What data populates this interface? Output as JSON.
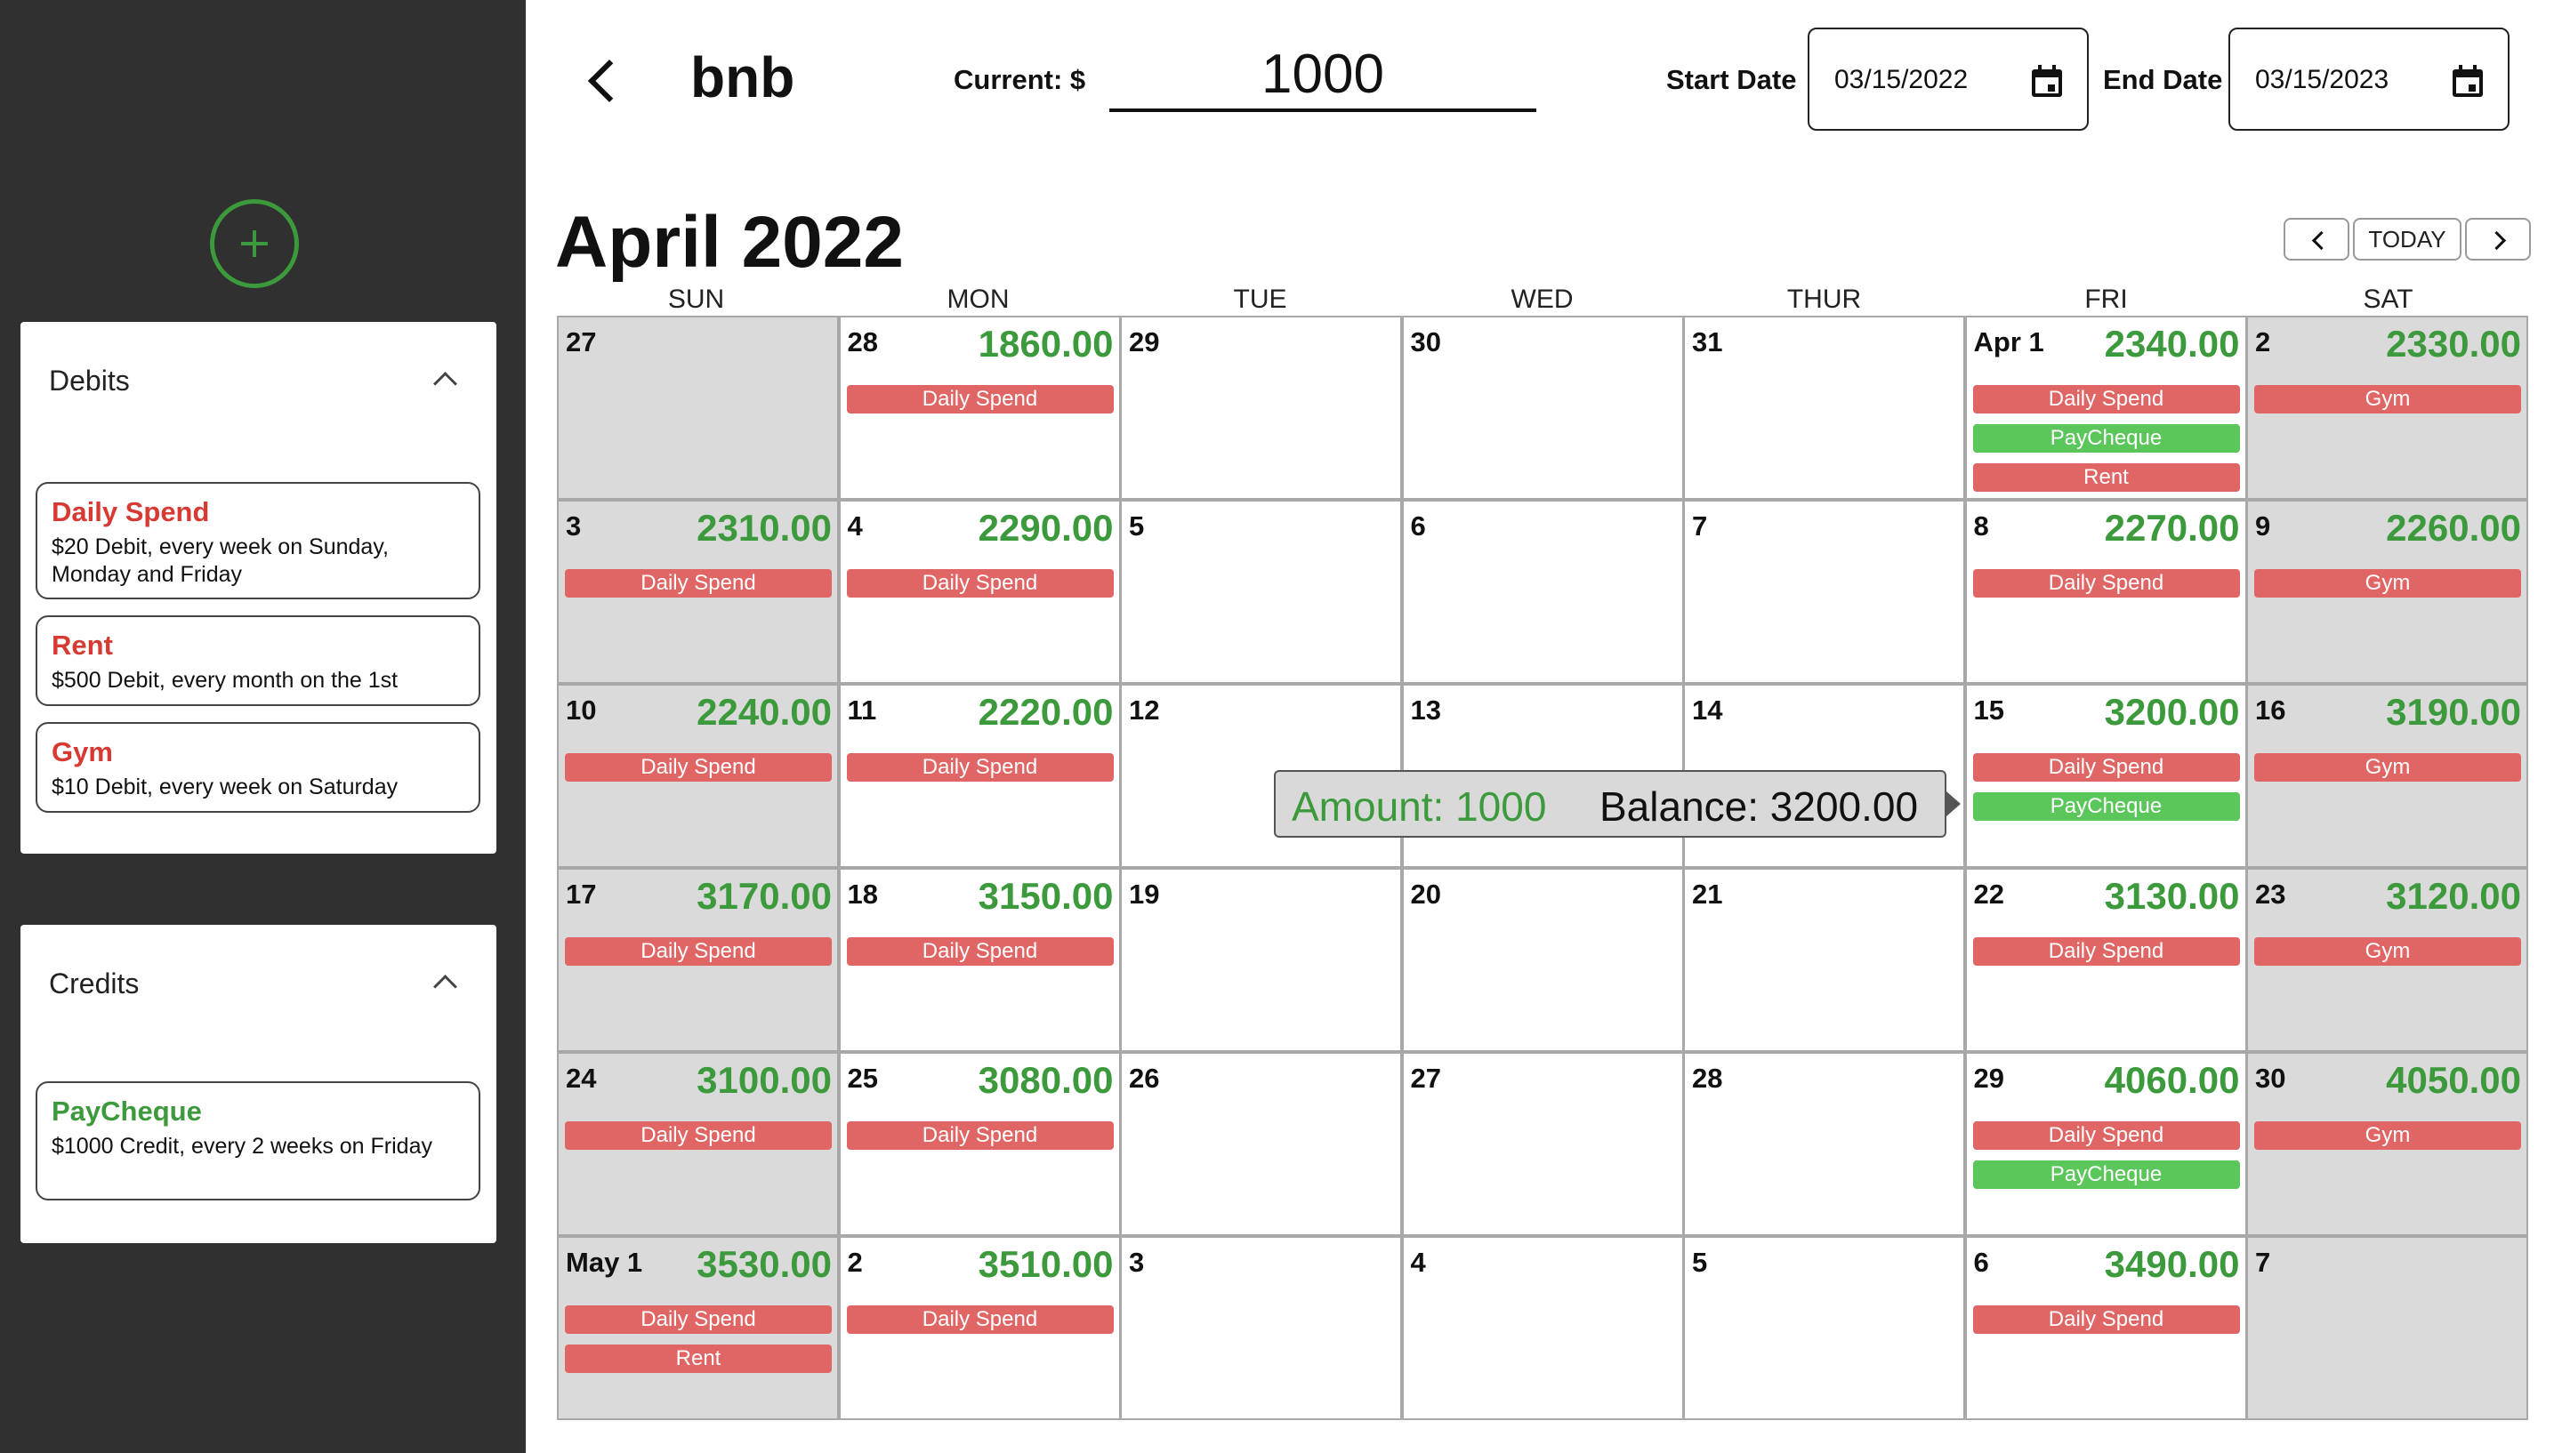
{
  "sidebar": {
    "debits": {
      "title": "Debits",
      "items": [
        {
          "name": "Daily Spend",
          "desc": "$20 Debit, every week on Sunday, Monday and Friday"
        },
        {
          "name": "Rent",
          "desc": "$500 Debit, every month on the 1st"
        },
        {
          "name": "Gym",
          "desc": "$10 Debit, every week on Saturday"
        }
      ]
    },
    "credits": {
      "title": "Credits",
      "items": [
        {
          "name": "PayCheque",
          "desc": "$1000 Credit, every 2 weeks on Friday"
        }
      ]
    }
  },
  "header": {
    "title": "bnb",
    "current_label": "Current: $",
    "current_value": "1000",
    "start_label": "Start Date",
    "start_value": "03/15/2022",
    "end_label": "End Date",
    "end_value": "03/15/2023"
  },
  "calendar": {
    "month_title": "April 2022",
    "today_label": "TODAY",
    "weekdays": [
      "SUN",
      "MON",
      "TUE",
      "WED",
      "THUR",
      "FRI",
      "SAT"
    ],
    "weeks": [
      [
        {
          "day": "27",
          "weekend": true,
          "balance": "",
          "events": []
        },
        {
          "day": "28",
          "balance": "1860.00",
          "events": [
            {
              "label": "Daily Spend",
              "kind": "debit"
            }
          ]
        },
        {
          "day": "29",
          "balance": "",
          "events": []
        },
        {
          "day": "30",
          "balance": "",
          "events": []
        },
        {
          "day": "31",
          "balance": "",
          "events": []
        },
        {
          "day": "Apr 1",
          "balance": "2340.00",
          "events": [
            {
              "label": "Daily Spend",
              "kind": "debit"
            },
            {
              "label": "PayCheque",
              "kind": "credit"
            },
            {
              "label": "Rent",
              "kind": "debit"
            }
          ]
        },
        {
          "day": "2",
          "weekend": true,
          "balance": "2330.00",
          "events": [
            {
              "label": "Gym",
              "kind": "debit"
            }
          ]
        }
      ],
      [
        {
          "day": "3",
          "weekend": true,
          "balance": "2310.00",
          "events": [
            {
              "label": "Daily Spend",
              "kind": "debit"
            }
          ]
        },
        {
          "day": "4",
          "balance": "2290.00",
          "events": [
            {
              "label": "Daily Spend",
              "kind": "debit"
            }
          ]
        },
        {
          "day": "5",
          "balance": "",
          "events": []
        },
        {
          "day": "6",
          "balance": "",
          "events": []
        },
        {
          "day": "7",
          "balance": "",
          "events": []
        },
        {
          "day": "8",
          "balance": "2270.00",
          "events": [
            {
              "label": "Daily Spend",
              "kind": "debit"
            }
          ]
        },
        {
          "day": "9",
          "weekend": true,
          "balance": "2260.00",
          "events": [
            {
              "label": "Gym",
              "kind": "debit"
            }
          ]
        }
      ],
      [
        {
          "day": "10",
          "weekend": true,
          "balance": "2240.00",
          "events": [
            {
              "label": "Daily Spend",
              "kind": "debit"
            }
          ]
        },
        {
          "day": "11",
          "balance": "2220.00",
          "events": [
            {
              "label": "Daily Spend",
              "kind": "debit"
            }
          ]
        },
        {
          "day": "12",
          "balance": "",
          "events": []
        },
        {
          "day": "13",
          "balance": "",
          "events": []
        },
        {
          "day": "14",
          "balance": "",
          "events": []
        },
        {
          "day": "15",
          "balance": "3200.00",
          "events": [
            {
              "label": "Daily Spend",
              "kind": "debit"
            },
            {
              "label": "PayCheque",
              "kind": "credit"
            }
          ]
        },
        {
          "day": "16",
          "weekend": true,
          "balance": "3190.00",
          "events": [
            {
              "label": "Gym",
              "kind": "debit"
            }
          ]
        }
      ],
      [
        {
          "day": "17",
          "weekend": true,
          "balance": "3170.00",
          "events": [
            {
              "label": "Daily Spend",
              "kind": "debit"
            }
          ]
        },
        {
          "day": "18",
          "balance": "3150.00",
          "events": [
            {
              "label": "Daily Spend",
              "kind": "debit"
            }
          ]
        },
        {
          "day": "19",
          "balance": "",
          "events": []
        },
        {
          "day": "20",
          "balance": "",
          "events": []
        },
        {
          "day": "21",
          "balance": "",
          "events": []
        },
        {
          "day": "22",
          "balance": "3130.00",
          "events": [
            {
              "label": "Daily Spend",
              "kind": "debit"
            }
          ]
        },
        {
          "day": "23",
          "weekend": true,
          "balance": "3120.00",
          "events": [
            {
              "label": "Gym",
              "kind": "debit"
            }
          ]
        }
      ],
      [
        {
          "day": "24",
          "weekend": true,
          "balance": "3100.00",
          "events": [
            {
              "label": "Daily Spend",
              "kind": "debit"
            }
          ]
        },
        {
          "day": "25",
          "balance": "3080.00",
          "events": [
            {
              "label": "Daily Spend",
              "kind": "debit"
            }
          ]
        },
        {
          "day": "26",
          "balance": "",
          "events": []
        },
        {
          "day": "27",
          "balance": "",
          "events": []
        },
        {
          "day": "28",
          "balance": "",
          "events": []
        },
        {
          "day": "29",
          "balance": "4060.00",
          "events": [
            {
              "label": "Daily Spend",
              "kind": "debit"
            },
            {
              "label": "PayCheque",
              "kind": "credit"
            }
          ]
        },
        {
          "day": "30",
          "weekend": true,
          "balance": "4050.00",
          "events": [
            {
              "label": "Gym",
              "kind": "debit"
            }
          ]
        }
      ],
      [
        {
          "day": "May 1",
          "weekend": true,
          "balance": "3530.00",
          "events": [
            {
              "label": "Daily Spend",
              "kind": "debit"
            },
            {
              "label": "Rent",
              "kind": "debit"
            }
          ]
        },
        {
          "day": "2",
          "balance": "3510.00",
          "events": [
            {
              "label": "Daily Spend",
              "kind": "debit"
            }
          ]
        },
        {
          "day": "3",
          "balance": "",
          "events": []
        },
        {
          "day": "4",
          "balance": "",
          "events": []
        },
        {
          "day": "5",
          "balance": "",
          "events": []
        },
        {
          "day": "6",
          "balance": "3490.00",
          "events": [
            {
              "label": "Daily Spend",
              "kind": "debit"
            }
          ]
        },
        {
          "day": "7",
          "weekend": true,
          "balance": "",
          "events": []
        }
      ]
    ]
  },
  "tooltip": {
    "amount": "Amount: 1000",
    "balance": "Balance: 3200.00"
  },
  "colors": {
    "sidebar_bg": "#303030",
    "credit_green": "#3c9a3c",
    "debit_red": "#d63a32",
    "debit_event": "#e06666",
    "credit_event": "#5bc75b",
    "weekend_bg": "#dadada"
  }
}
